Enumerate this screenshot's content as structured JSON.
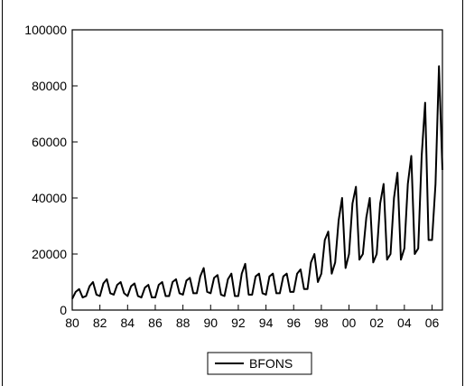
{
  "chart_data": {
    "type": "line",
    "title": "",
    "xlabel": "",
    "ylabel": "",
    "xlim": [
      1980,
      2006.75
    ],
    "ylim": [
      0,
      100000
    ],
    "x_ticks": [
      {
        "value": 1980,
        "label": "80"
      },
      {
        "value": 1982,
        "label": "82"
      },
      {
        "value": 1984,
        "label": "84"
      },
      {
        "value": 1986,
        "label": "86"
      },
      {
        "value": 1988,
        "label": "88"
      },
      {
        "value": 1990,
        "label": "90"
      },
      {
        "value": 1992,
        "label": "92"
      },
      {
        "value": 1994,
        "label": "94"
      },
      {
        "value": 1996,
        "label": "96"
      },
      {
        "value": 1998,
        "label": "98"
      },
      {
        "value": 2000,
        "label": "00"
      },
      {
        "value": 2002,
        "label": "02"
      },
      {
        "value": 2004,
        "label": "04"
      },
      {
        "value": 2006,
        "label": "06"
      }
    ],
    "y_ticks": [
      {
        "value": 0,
        "label": "0"
      },
      {
        "value": 20000,
        "label": "20000"
      },
      {
        "value": 40000,
        "label": "40000"
      },
      {
        "value": 60000,
        "label": "60000"
      },
      {
        "value": 80000,
        "label": "80000"
      },
      {
        "value": 100000,
        "label": "100000"
      }
    ],
    "grid": false,
    "legend": {
      "placement": "bottom-center",
      "entries": [
        "BFONS"
      ]
    },
    "series": [
      {
        "name": "BFONS",
        "color": "#000000",
        "x": [
          1980.0,
          1980.25,
          1980.5,
          1980.75,
          1981.0,
          1981.25,
          1981.5,
          1981.75,
          1982.0,
          1982.25,
          1982.5,
          1982.75,
          1983.0,
          1983.25,
          1983.5,
          1983.75,
          1984.0,
          1984.25,
          1984.5,
          1984.75,
          1985.0,
          1985.25,
          1985.5,
          1985.75,
          1986.0,
          1986.25,
          1986.5,
          1986.75,
          1987.0,
          1987.25,
          1987.5,
          1987.75,
          1988.0,
          1988.25,
          1988.5,
          1988.75,
          1989.0,
          1989.25,
          1989.5,
          1989.75,
          1990.0,
          1990.25,
          1990.5,
          1990.75,
          1991.0,
          1991.25,
          1991.5,
          1991.75,
          1992.0,
          1992.25,
          1992.5,
          1992.75,
          1993.0,
          1993.25,
          1993.5,
          1993.75,
          1994.0,
          1994.25,
          1994.5,
          1994.75,
          1995.0,
          1995.25,
          1995.5,
          1995.75,
          1996.0,
          1996.25,
          1996.5,
          1996.75,
          1997.0,
          1997.25,
          1997.5,
          1997.75,
          1998.0,
          1998.25,
          1998.5,
          1998.75,
          1999.0,
          1999.25,
          1999.5,
          1999.75,
          2000.0,
          2000.25,
          2000.5,
          2000.75,
          2001.0,
          2001.25,
          2001.5,
          2001.75,
          2002.0,
          2002.25,
          2002.5,
          2002.75,
          2003.0,
          2003.25,
          2003.5,
          2003.75,
          2004.0,
          2004.25,
          2004.5,
          2004.75,
          2005.0,
          2005.25,
          2005.5,
          2005.75,
          2006.0,
          2006.25,
          2006.5,
          2006.75
        ],
        "values": [
          4000,
          6500,
          7500,
          4500,
          5000,
          8500,
          10000,
          5500,
          5000,
          9500,
          11000,
          6000,
          5500,
          9000,
          10000,
          6000,
          5000,
          8500,
          9500,
          5000,
          4500,
          8000,
          9000,
          4500,
          4500,
          9000,
          10000,
          5000,
          5000,
          10000,
          11000,
          6000,
          5500,
          10500,
          11500,
          6000,
          6000,
          12000,
          15000,
          6500,
          6000,
          11500,
          12500,
          5500,
          5000,
          11000,
          13000,
          5000,
          5000,
          13000,
          16500,
          5500,
          5500,
          12000,
          13000,
          6000,
          5500,
          12000,
          13000,
          6000,
          6000,
          12000,
          13000,
          6500,
          6500,
          13000,
          14500,
          7500,
          7500,
          17000,
          20000,
          10000,
          13000,
          25000,
          28000,
          13000,
          17000,
          32000,
          40000,
          15000,
          20000,
          38000,
          44000,
          18000,
          20000,
          33000,
          40000,
          17000,
          20000,
          38000,
          45000,
          18000,
          20000,
          40000,
          49000,
          18000,
          22000,
          45000,
          55000,
          20000,
          22000,
          55000,
          74000,
          25000,
          25000,
          45000,
          87000,
          50000
        ]
      }
    ]
  }
}
